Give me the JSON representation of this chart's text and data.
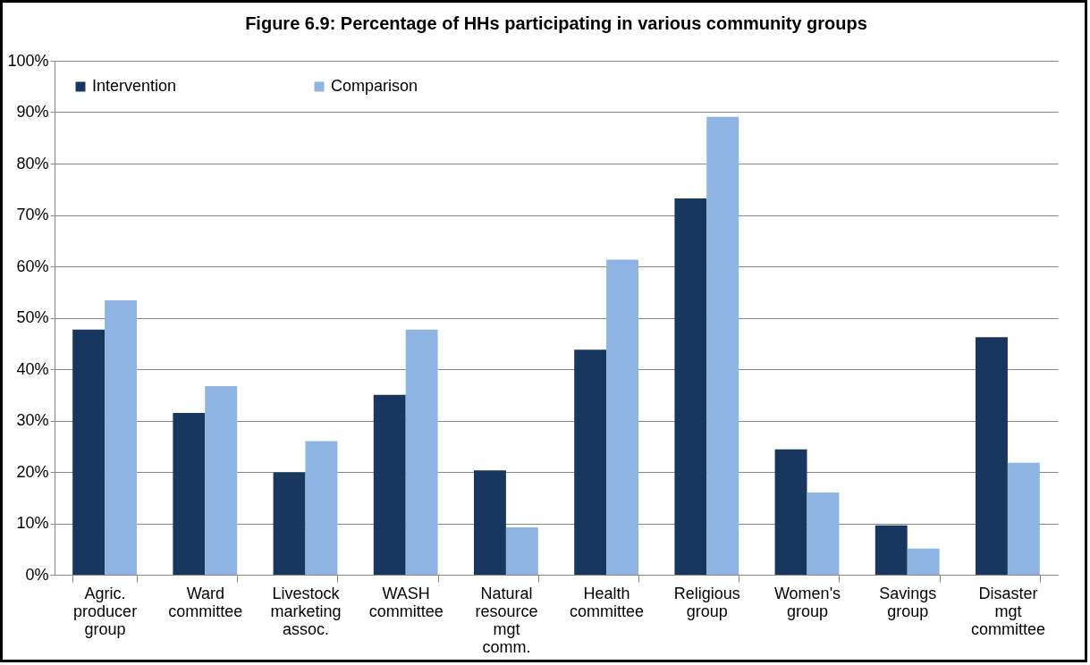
{
  "chart_data": {
    "type": "bar",
    "title": "Figure 6.9:  Percentage of HHs participating in various community groups",
    "categories": [
      "Agric. producer group",
      "Ward committee",
      "Livestock marketing assoc.",
      "WASH committee",
      "Natural resource mgt comm.",
      "Health committee",
      "Religious group",
      "Women's group",
      "Savings group",
      "Disaster mgt committee"
    ],
    "series": [
      {
        "name": "Intervention",
        "color": "#17375e",
        "values": [
          47.7,
          31.5,
          19.9,
          35.0,
          20.3,
          43.8,
          73.2,
          24.4,
          9.6,
          46.2
        ]
      },
      {
        "name": "Comparison",
        "color": "#8db4e2",
        "values": [
          53.4,
          36.7,
          26.0,
          47.7,
          9.2,
          61.3,
          89.1,
          16.0,
          5.1,
          21.8
        ]
      }
    ],
    "ylim": [
      0,
      100
    ],
    "yticks": [
      {
        "value": 0,
        "label": "0%"
      },
      {
        "value": 10,
        "label": "10%"
      },
      {
        "value": 20,
        "label": "20%"
      },
      {
        "value": 30,
        "label": "30%"
      },
      {
        "value": 40,
        "label": "40%"
      },
      {
        "value": 50,
        "label": "50%"
      },
      {
        "value": 60,
        "label": "60%"
      },
      {
        "value": 70,
        "label": "70%"
      },
      {
        "value": 80,
        "label": "80%"
      },
      {
        "value": 90,
        "label": "90%"
      },
      {
        "value": 100,
        "label": "100%"
      }
    ],
    "grid": "y",
    "legend": "top left"
  }
}
